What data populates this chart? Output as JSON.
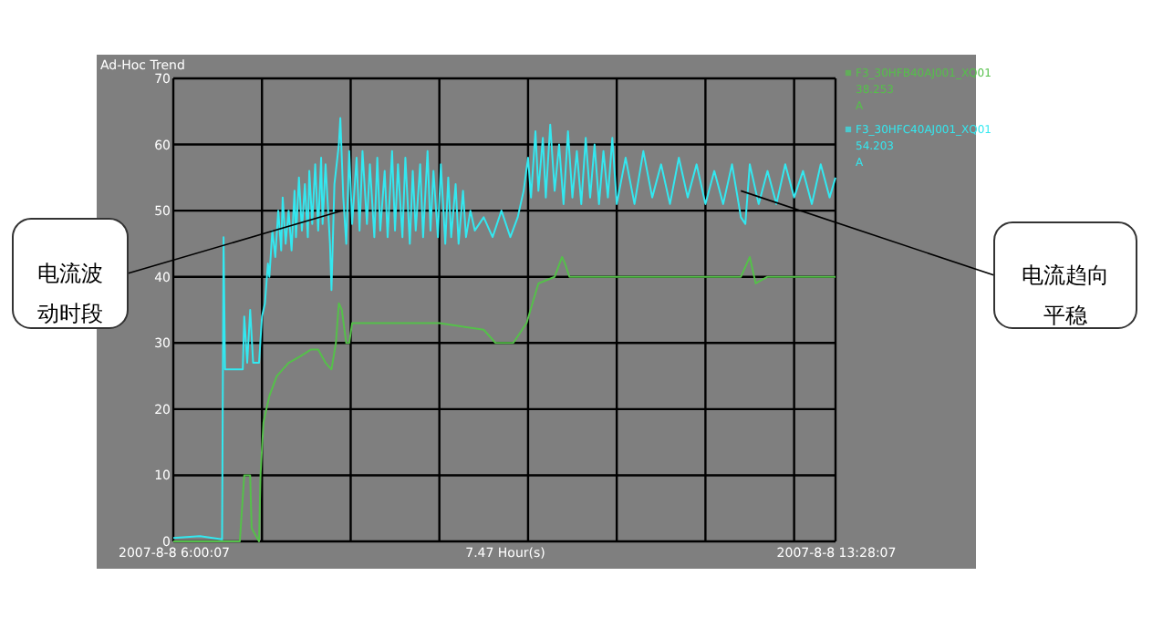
{
  "chart_data": {
    "type": "line",
    "title": "Ad-Hoc Trend",
    "xlabel": "7.47 Hour(s)",
    "series": [
      {
        "name": "F3_30HFB40AJ001_XQ01\n38.253\nA",
        "color": "#55c04a",
        "x": [
          "2007-08-08T06:00",
          "2007-08-08T06:45",
          "2007-08-08T06:48",
          "2007-08-08T06:52",
          "2007-08-08T06:53",
          "2007-08-08T06:58",
          "2007-08-08T06:59",
          "2007-08-08T07:01",
          "2007-08-08T07:05",
          "2007-08-08T07:10",
          "2007-08-08T07:18",
          "2007-08-08T07:26",
          "2007-08-08T07:33",
          "2007-08-08T07:38",
          "2007-08-08T07:43",
          "2007-08-08T07:47",
          "2007-08-08T07:50",
          "2007-08-08T07:52",
          "2007-08-08T07:54",
          "2007-08-08T07:57",
          "2007-08-08T07:59",
          "2007-08-08T08:01",
          "2007-08-08T08:30",
          "2007-08-08T09:00",
          "2007-08-08T09:30",
          "2007-08-08T09:38",
          "2007-08-08T09:50",
          "2007-08-08T09:59",
          "2007-08-08T10:07",
          "2007-08-08T10:18",
          "2007-08-08T10:23",
          "2007-08-08T10:25",
          "2007-08-08T10:28",
          "2007-08-08T11:00",
          "2007-08-08T11:30",
          "2007-08-08T12:00",
          "2007-08-08T12:24",
          "2007-08-08T12:30",
          "2007-08-08T12:34",
          "2007-08-08T12:42",
          "2007-08-08T13:28"
        ],
        "values": [
          0,
          0,
          10,
          10,
          2,
          0,
          10,
          18,
          22,
          25,
          27,
          28,
          29,
          29,
          27,
          26,
          30,
          36,
          35,
          30,
          30,
          33,
          33,
          33,
          32,
          30,
          30,
          33,
          39,
          40,
          43,
          42,
          40,
          40,
          40,
          40,
          40,
          43,
          39,
          40,
          40
        ]
      },
      {
        "name": "F3_30HFC40AJ001_XQ01\n54.203\nA",
        "color": "#33e8f0",
        "x": [
          "2007-08-08T06:00",
          "2007-08-08T06:18",
          "2007-08-08T06:33",
          "2007-08-08T06:34",
          "2007-08-08T06:35",
          "2007-08-08T06:42",
          "2007-08-08T06:47",
          "2007-08-08T06:48",
          "2007-08-08T06:50",
          "2007-08-08T06:52",
          "2007-08-08T06:54",
          "2007-08-08T06:58",
          "2007-08-08T07:00",
          "2007-08-08T07:02",
          "2007-08-08T07:04",
          "2007-08-08T07:05",
          "2007-08-08T07:07",
          "2007-08-08T07:09",
          "2007-08-08T07:11",
          "2007-08-08T07:13",
          "2007-08-08T07:14",
          "2007-08-08T07:16",
          "2007-08-08T07:18",
          "2007-08-08T07:20",
          "2007-08-08T07:22",
          "2007-08-08T07:23",
          "2007-08-08T07:25",
          "2007-08-08T07:27",
          "2007-08-08T07:29",
          "2007-08-08T07:31",
          "2007-08-08T07:32",
          "2007-08-08T07:34",
          "2007-08-08T07:36",
          "2007-08-08T07:38",
          "2007-08-08T07:40",
          "2007-08-08T07:41",
          "2007-08-08T07:43",
          "2007-08-08T07:46",
          "2007-08-08T07:47",
          "2007-08-08T07:49",
          "2007-08-08T07:52",
          "2007-08-08T07:53",
          "2007-08-08T07:55",
          "2007-08-08T07:57",
          "2007-08-08T07:59",
          "2007-08-08T08:01",
          "2007-08-08T08:04",
          "2007-08-08T08:06",
          "2007-08-08T08:08",
          "2007-08-08T08:11",
          "2007-08-08T08:13",
          "2007-08-08T08:16",
          "2007-08-08T08:18",
          "2007-08-08T08:20",
          "2007-08-08T08:23",
          "2007-08-08T08:25",
          "2007-08-08T08:28",
          "2007-08-08T08:30",
          "2007-08-08T08:32",
          "2007-08-08T08:35",
          "2007-08-08T08:37",
          "2007-08-08T08:40",
          "2007-08-08T08:42",
          "2007-08-08T08:44",
          "2007-08-08T08:47",
          "2007-08-08T08:49",
          "2007-08-08T08:52",
          "2007-08-08T08:54",
          "2007-08-08T08:56",
          "2007-08-08T08:59",
          "2007-08-08T09:01",
          "2007-08-08T09:04",
          "2007-08-08T09:06",
          "2007-08-08T09:08",
          "2007-08-08T09:11",
          "2007-08-08T09:13",
          "2007-08-08T09:16",
          "2007-08-08T09:18",
          "2007-08-08T09:21",
          "2007-08-08T09:24",
          "2007-08-08T09:30",
          "2007-08-08T09:36",
          "2007-08-08T09:42",
          "2007-08-08T09:48",
          "2007-08-08T09:53",
          "2007-08-08T09:57",
          "2007-08-08T10:00",
          "2007-08-08T10:02",
          "2007-08-08T10:05",
          "2007-08-08T10:07",
          "2007-08-08T10:10",
          "2007-08-08T10:12",
          "2007-08-08T10:15",
          "2007-08-08T10:18",
          "2007-08-08T10:21",
          "2007-08-08T10:24",
          "2007-08-08T10:27",
          "2007-08-08T10:30",
          "2007-08-08T10:33",
          "2007-08-08T10:36",
          "2007-08-08T10:39",
          "2007-08-08T10:42",
          "2007-08-08T10:45",
          "2007-08-08T10:48",
          "2007-08-08T10:51",
          "2007-08-08T10:54",
          "2007-08-08T10:57",
          "2007-08-08T11:00",
          "2007-08-08T11:06",
          "2007-08-08T11:12",
          "2007-08-08T11:18",
          "2007-08-08T11:24",
          "2007-08-08T11:30",
          "2007-08-08T11:36",
          "2007-08-08T11:42",
          "2007-08-08T11:48",
          "2007-08-08T11:54",
          "2007-08-08T12:00",
          "2007-08-08T12:06",
          "2007-08-08T12:12",
          "2007-08-08T12:18",
          "2007-08-08T12:24",
          "2007-08-08T12:27",
          "2007-08-08T12:30",
          "2007-08-08T12:36",
          "2007-08-08T12:42",
          "2007-08-08T12:48",
          "2007-08-08T12:54",
          "2007-08-08T13:00",
          "2007-08-08T13:06",
          "2007-08-08T13:12",
          "2007-08-08T13:18",
          "2007-08-08T13:24",
          "2007-08-08T13:28"
        ],
        "values": [
          0.5,
          0.8,
          0.3,
          46,
          26,
          26,
          26,
          34,
          27,
          35,
          27,
          27,
          34,
          36,
          42,
          40,
          47,
          43,
          50,
          44,
          52,
          45,
          50,
          44,
          53,
          46,
          55,
          47,
          54,
          46,
          56,
          48,
          57,
          47,
          58,
          48,
          57,
          45,
          38,
          54,
          60,
          64,
          52,
          45,
          59,
          48,
          58,
          47,
          59,
          48,
          57,
          46,
          58,
          47,
          56,
          46,
          59,
          47,
          57,
          46,
          58,
          45,
          56,
          47,
          57,
          46,
          59,
          47,
          56,
          46,
          57,
          45,
          55,
          46,
          54,
          45,
          53,
          46,
          50,
          47,
          49,
          46,
          50,
          46,
          49,
          53,
          58,
          52,
          62,
          53,
          61,
          52,
          63,
          53,
          60,
          51,
          62,
          52,
          59,
          51,
          61,
          52,
          60,
          51,
          59,
          52,
          61,
          51,
          58,
          51,
          59,
          52,
          57,
          51,
          58,
          52,
          57,
          51,
          56,
          51,
          57,
          49,
          48,
          57,
          51,
          56,
          51,
          57,
          52,
          56,
          51,
          57,
          52,
          55
        ]
      }
    ],
    "xlim": [
      "2007-08-08T06:00",
      "2007-08-08T13:28"
    ],
    "ylim": [
      0,
      70
    ],
    "xticks": [
      {
        "value": "2007-08-08T06:00",
        "label": "2007-8-8 6:00:07"
      },
      {
        "value": "2007-08-08T07:00",
        "label": null
      },
      {
        "value": "2007-08-08T08:00",
        "label": null
      },
      {
        "value": "2007-08-08T09:00",
        "label": null
      },
      {
        "value": "2007-08-08T10:00",
        "label": null
      },
      {
        "value": "2007-08-08T11:00",
        "label": null
      },
      {
        "value": "2007-08-08T12:00",
        "label": null
      },
      {
        "value": "2007-08-08T13:00",
        "label": null
      },
      {
        "value": "2007-08-08T13:28",
        "label": "2007-8-8 13:28:07"
      }
    ],
    "yticks": [
      0,
      10,
      20,
      30,
      40,
      50,
      60,
      70
    ],
    "grid": true,
    "legend": "right",
    "annotations": [
      {
        "text": "电流波动时段",
        "x": "2007-08-08T07:54",
        "y": 50
      },
      {
        "text": "电流趋向平稳",
        "x": "2007-08-08T12:24",
        "y": 53
      }
    ]
  }
}
